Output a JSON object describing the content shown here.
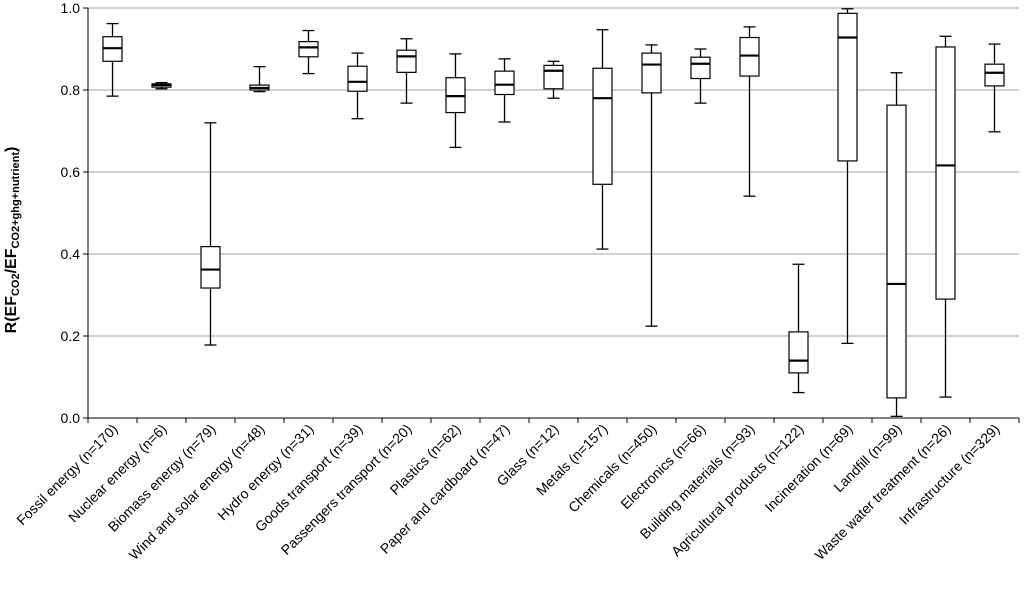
{
  "chart_data": {
    "type": "box",
    "ylabel_main": "R(EF",
    "ylabel_sub1": "CO2",
    "ylabel_slash": "/EF",
    "ylabel_sub2": "CO2+ghg+nutrient",
    "ylabel_close": ")",
    "ylim": [
      0,
      1
    ],
    "yticks": [
      "0.0",
      "0.2",
      "0.4",
      "0.6",
      "0.8",
      "1.0"
    ],
    "grid": true,
    "categories": [
      "Fossil energy (n=170)",
      "Nuclear energy (n=6)",
      "Biomass energy (n=79)",
      "Wind and solar energy (n=48)",
      "Hydro energy (n=31)",
      "Goods transport (n=39)",
      "Passengers transport (n=20)",
      "Plastics (n=62)",
      "Paper and cardboard (n=47)",
      "Glass (n=12)",
      "Metals (n=157)",
      "Chemicals (n=450)",
      "Electronics (n=66)",
      "Building materials (n=93)",
      "Agricultural products (n=122)",
      "Incineration (n=69)",
      "Landfill (n=99)",
      "Waste water treatment (n=26)",
      "Infrastructure (n=329)"
    ],
    "boxes": [
      {
        "min": 0.785,
        "q1": 0.87,
        "median": 0.902,
        "q3": 0.93,
        "max": 0.962
      },
      {
        "min": 0.803,
        "q1": 0.807,
        "median": 0.812,
        "q3": 0.815,
        "max": 0.818
      },
      {
        "min": 0.178,
        "q1": 0.317,
        "median": 0.362,
        "q3": 0.418,
        "max": 0.72
      },
      {
        "min": 0.796,
        "q1": 0.8,
        "median": 0.805,
        "q3": 0.812,
        "max": 0.857
      },
      {
        "min": 0.84,
        "q1": 0.881,
        "median": 0.904,
        "q3": 0.918,
        "max": 0.945
      },
      {
        "min": 0.73,
        "q1": 0.797,
        "median": 0.82,
        "q3": 0.858,
        "max": 0.89
      },
      {
        "min": 0.768,
        "q1": 0.843,
        "median": 0.882,
        "q3": 0.897,
        "max": 0.925
      },
      {
        "min": 0.66,
        "q1": 0.745,
        "median": 0.785,
        "q3": 0.83,
        "max": 0.888
      },
      {
        "min": 0.722,
        "q1": 0.789,
        "median": 0.813,
        "q3": 0.846,
        "max": 0.876
      },
      {
        "min": 0.78,
        "q1": 0.803,
        "median": 0.847,
        "q3": 0.86,
        "max": 0.87
      },
      {
        "min": 0.412,
        "q1": 0.57,
        "median": 0.78,
        "q3": 0.853,
        "max": 0.947
      },
      {
        "min": 0.224,
        "q1": 0.793,
        "median": 0.862,
        "q3": 0.89,
        "max": 0.91
      },
      {
        "min": 0.768,
        "q1": 0.828,
        "median": 0.864,
        "q3": 0.88,
        "max": 0.9
      },
      {
        "min": 0.541,
        "q1": 0.834,
        "median": 0.884,
        "q3": 0.928,
        "max": 0.954
      },
      {
        "min": 0.062,
        "q1": 0.11,
        "median": 0.14,
        "q3": 0.21,
        "max": 0.375
      },
      {
        "min": 0.182,
        "q1": 0.627,
        "median": 0.928,
        "q3": 0.987,
        "max": 0.998
      },
      {
        "min": 0.004,
        "q1": 0.049,
        "median": 0.327,
        "q3": 0.763,
        "max": 0.842
      },
      {
        "min": 0.051,
        "q1": 0.29,
        "median": 0.616,
        "q3": 0.905,
        "max": 0.931
      },
      {
        "min": 0.698,
        "q1": 0.81,
        "median": 0.842,
        "q3": 0.863,
        "max": 0.912
      }
    ]
  }
}
